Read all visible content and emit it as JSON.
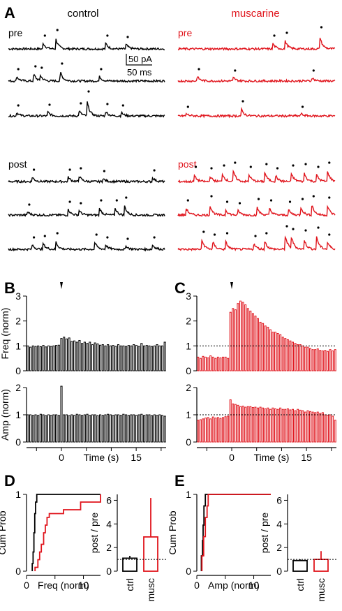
{
  "colors": {
    "control": "#000000",
    "muscarine": "#e0141c"
  },
  "panels": {
    "A": {
      "letter": "A",
      "control_label": "control",
      "muscarine_label": "muscarine",
      "pre_label": "pre",
      "post_label": "post",
      "scale_amp": "50 pA",
      "scale_time": "50 ms"
    },
    "B": {
      "letter": "B"
    },
    "C": {
      "letter": "C"
    },
    "D": {
      "letter": "D"
    },
    "E": {
      "letter": "E"
    }
  },
  "chart_data": [
    {
      "panel": "B",
      "type": "bar",
      "series_color": "black",
      "xlabel": "Time (s)",
      "ylabel": "Freq (norm)",
      "xlim": [
        -7,
        21
      ],
      "ylim": [
        0,
        3
      ],
      "xticks": [
        0,
        15
      ],
      "yticks": [
        0,
        1,
        2,
        3
      ],
      "reference_line": null,
      "arrow_at": 0,
      "values": [
        1.0,
        0.95,
        1.0,
        0.98,
        1.0,
        0.97,
        1.02,
        0.96,
        1.0,
        0.98,
        1.0,
        1.02,
        1.03,
        1.3,
        1.35,
        1.28,
        1.32,
        1.18,
        1.2,
        1.15,
        1.22,
        1.1,
        1.15,
        1.1,
        1.15,
        1.05,
        1.12,
        1.08,
        1.03,
        1.05,
        1.0,
        1.05,
        1.0,
        1.02,
        0.98,
        1.05,
        1.0,
        1.0,
        0.98,
        1.02,
        1.0,
        1.05,
        1.02,
        0.98,
        1.1,
        1.0,
        1.02,
        1.0,
        0.98,
        1.0,
        1.05,
        1.0,
        1.0,
        1.15
      ]
    },
    {
      "panel": "B",
      "type": "bar",
      "series_color": "black",
      "xlabel": "Time (s)",
      "ylabel": "Amp (norm)",
      "xlim": [
        -7,
        21
      ],
      "ylim": [
        0,
        2
      ],
      "xticks": [
        0,
        15
      ],
      "yticks": [
        0,
        1,
        2
      ],
      "values": [
        1.0,
        1.0,
        0.98,
        1.0,
        0.98,
        1.02,
        1.0,
        0.97,
        1.0,
        0.98,
        1.0,
        1.0,
        0.98,
        2.05,
        1.0,
        1.0,
        0.97,
        1.0,
        0.98,
        1.02,
        1.0,
        0.98,
        1.0,
        1.02,
        0.98,
        1.0,
        1.0,
        0.97,
        1.0,
        0.98,
        1.0,
        1.02,
        1.0,
        0.98,
        1.0,
        1.0,
        0.98,
        1.02,
        1.0,
        0.98,
        1.0,
        1.0,
        0.98,
        1.0,
        1.02,
        0.98,
        1.0,
        1.0,
        0.97,
        1.0,
        0.98,
        1.0,
        0.98,
        0.95
      ]
    },
    {
      "panel": "C",
      "type": "bar",
      "series_color": "red",
      "xlabel": "Time (s)",
      "ylabel": "",
      "xlim": [
        -7,
        21
      ],
      "ylim": [
        0,
        3
      ],
      "xticks": [
        0,
        15
      ],
      "yticks": [
        0,
        1,
        2,
        3
      ],
      "reference_line": 1,
      "arrow_at": 0,
      "values": [
        0.55,
        0.5,
        0.58,
        0.55,
        0.52,
        0.6,
        0.55,
        0.5,
        0.55,
        0.52,
        0.55,
        0.55,
        0.5,
        2.35,
        2.5,
        2.45,
        2.7,
        2.8,
        2.75,
        2.65,
        2.5,
        2.4,
        2.3,
        2.2,
        2.1,
        1.95,
        1.9,
        1.8,
        1.75,
        1.65,
        1.55,
        1.55,
        1.5,
        1.45,
        1.35,
        1.3,
        1.25,
        1.2,
        1.15,
        1.1,
        1.05,
        1.05,
        1.0,
        0.95,
        0.95,
        0.9,
        0.85,
        0.85,
        0.88,
        0.82,
        0.8,
        0.82,
        0.78,
        0.85,
        0.8,
        0.85
      ]
    },
    {
      "panel": "C",
      "type": "bar",
      "series_color": "red",
      "xlabel": "Time (s)",
      "ylabel": "",
      "xlim": [
        -7,
        21
      ],
      "ylim": [
        0,
        2
      ],
      "xticks": [
        0,
        15
      ],
      "yticks": [
        0,
        1,
        2
      ],
      "reference_line": 1,
      "values": [
        0.8,
        0.82,
        0.85,
        0.88,
        0.9,
        0.85,
        0.92,
        0.88,
        0.9,
        0.87,
        0.9,
        0.93,
        0.95,
        1.55,
        1.4,
        1.38,
        1.35,
        1.3,
        1.32,
        1.28,
        1.3,
        1.3,
        1.27,
        1.28,
        1.25,
        1.28,
        1.25,
        1.22,
        1.25,
        1.2,
        1.25,
        1.22,
        1.2,
        1.25,
        1.2,
        1.2,
        1.22,
        1.18,
        1.2,
        1.15,
        1.2,
        1.17,
        1.15,
        1.1,
        1.15,
        1.12,
        1.1,
        1.08,
        1.1,
        1.05,
        1.08,
        1.0,
        0.98,
        1.0,
        0.95,
        0.8
      ]
    },
    {
      "panel": "D",
      "type": "line",
      "xlabel": "Freq (norm)",
      "ylabel": "Cum Prob",
      "xlim": [
        0,
        13
      ],
      "ylim": [
        0,
        1
      ],
      "xticks": [
        0,
        10
      ],
      "yticks": [
        0,
        1
      ],
      "series": [
        {
          "color": "black",
          "points": [
            [
              1.0,
              0
            ],
            [
              1.0,
              0.1
            ],
            [
              1.15,
              0.1
            ],
            [
              1.15,
              0.25
            ],
            [
              1.3,
              0.25
            ],
            [
              1.3,
              0.5
            ],
            [
              1.45,
              0.5
            ],
            [
              1.45,
              0.75
            ],
            [
              1.6,
              0.75
            ],
            [
              1.6,
              0.9
            ],
            [
              1.8,
              0.9
            ],
            [
              1.8,
              1.0
            ],
            [
              13,
              1.0
            ]
          ]
        },
        {
          "color": "red",
          "points": [
            [
              1.5,
              0
            ],
            [
              1.5,
              0.05
            ],
            [
              2.0,
              0.05
            ],
            [
              2.0,
              0.15
            ],
            [
              2.3,
              0.15
            ],
            [
              2.3,
              0.25
            ],
            [
              2.6,
              0.25
            ],
            [
              2.6,
              0.35
            ],
            [
              3.0,
              0.35
            ],
            [
              3.0,
              0.5
            ],
            [
              3.3,
              0.5
            ],
            [
              3.3,
              0.6
            ],
            [
              3.6,
              0.6
            ],
            [
              3.6,
              0.7
            ],
            [
              4.0,
              0.7
            ],
            [
              4.0,
              0.75
            ],
            [
              6.5,
              0.75
            ],
            [
              6.5,
              0.8
            ],
            [
              9.5,
              0.8
            ],
            [
              9.5,
              0.9
            ],
            [
              13,
              0.9
            ],
            [
              13,
              1.0
            ]
          ]
        }
      ]
    },
    {
      "panel": "D",
      "type": "bar",
      "xlabel": "",
      "ylabel": "post / pre",
      "categories": [
        "ctrl",
        "musc"
      ],
      "values": [
        1.1,
        2.9
      ],
      "errors": [
        0.2,
        3.3
      ],
      "ylim": [
        0,
        6.5
      ],
      "yticks": [
        0,
        2,
        4,
        6
      ],
      "reference_line": 1
    },
    {
      "panel": "E",
      "type": "line",
      "xlabel": "Amp (norm)",
      "ylabel": "Cum Prob",
      "xlim": [
        0,
        13
      ],
      "ylim": [
        0,
        1
      ],
      "xticks": [
        0,
        10
      ],
      "yticks": [
        0,
        1
      ],
      "series": [
        {
          "color": "black",
          "points": [
            [
              0.8,
              0
            ],
            [
              0.8,
              0.2
            ],
            [
              1.0,
              0.2
            ],
            [
              1.0,
              0.4
            ],
            [
              1.1,
              0.4
            ],
            [
              1.1,
              0.6
            ],
            [
              1.25,
              0.6
            ],
            [
              1.25,
              0.85
            ],
            [
              1.5,
              0.85
            ],
            [
              1.5,
              1.0
            ],
            [
              13,
              1.0
            ]
          ]
        },
        {
          "color": "red",
          "points": [
            [
              0.9,
              0
            ],
            [
              0.9,
              0.2
            ],
            [
              1.2,
              0.2
            ],
            [
              1.2,
              0.45
            ],
            [
              1.5,
              0.45
            ],
            [
              1.5,
              0.7
            ],
            [
              1.8,
              0.7
            ],
            [
              1.8,
              0.85
            ],
            [
              2.0,
              0.85
            ],
            [
              2.0,
              1.0
            ],
            [
              13,
              1.0
            ]
          ]
        }
      ]
    },
    {
      "panel": "E",
      "type": "bar",
      "xlabel": "",
      "ylabel": "post / pre",
      "categories": [
        "ctrl",
        "musc"
      ],
      "values": [
        0.9,
        1.0
      ],
      "errors": [
        0.1,
        0.7
      ],
      "ylim": [
        0,
        6.5
      ],
      "yticks": [
        0,
        2,
        4,
        6
      ],
      "reference_line": 1
    }
  ]
}
